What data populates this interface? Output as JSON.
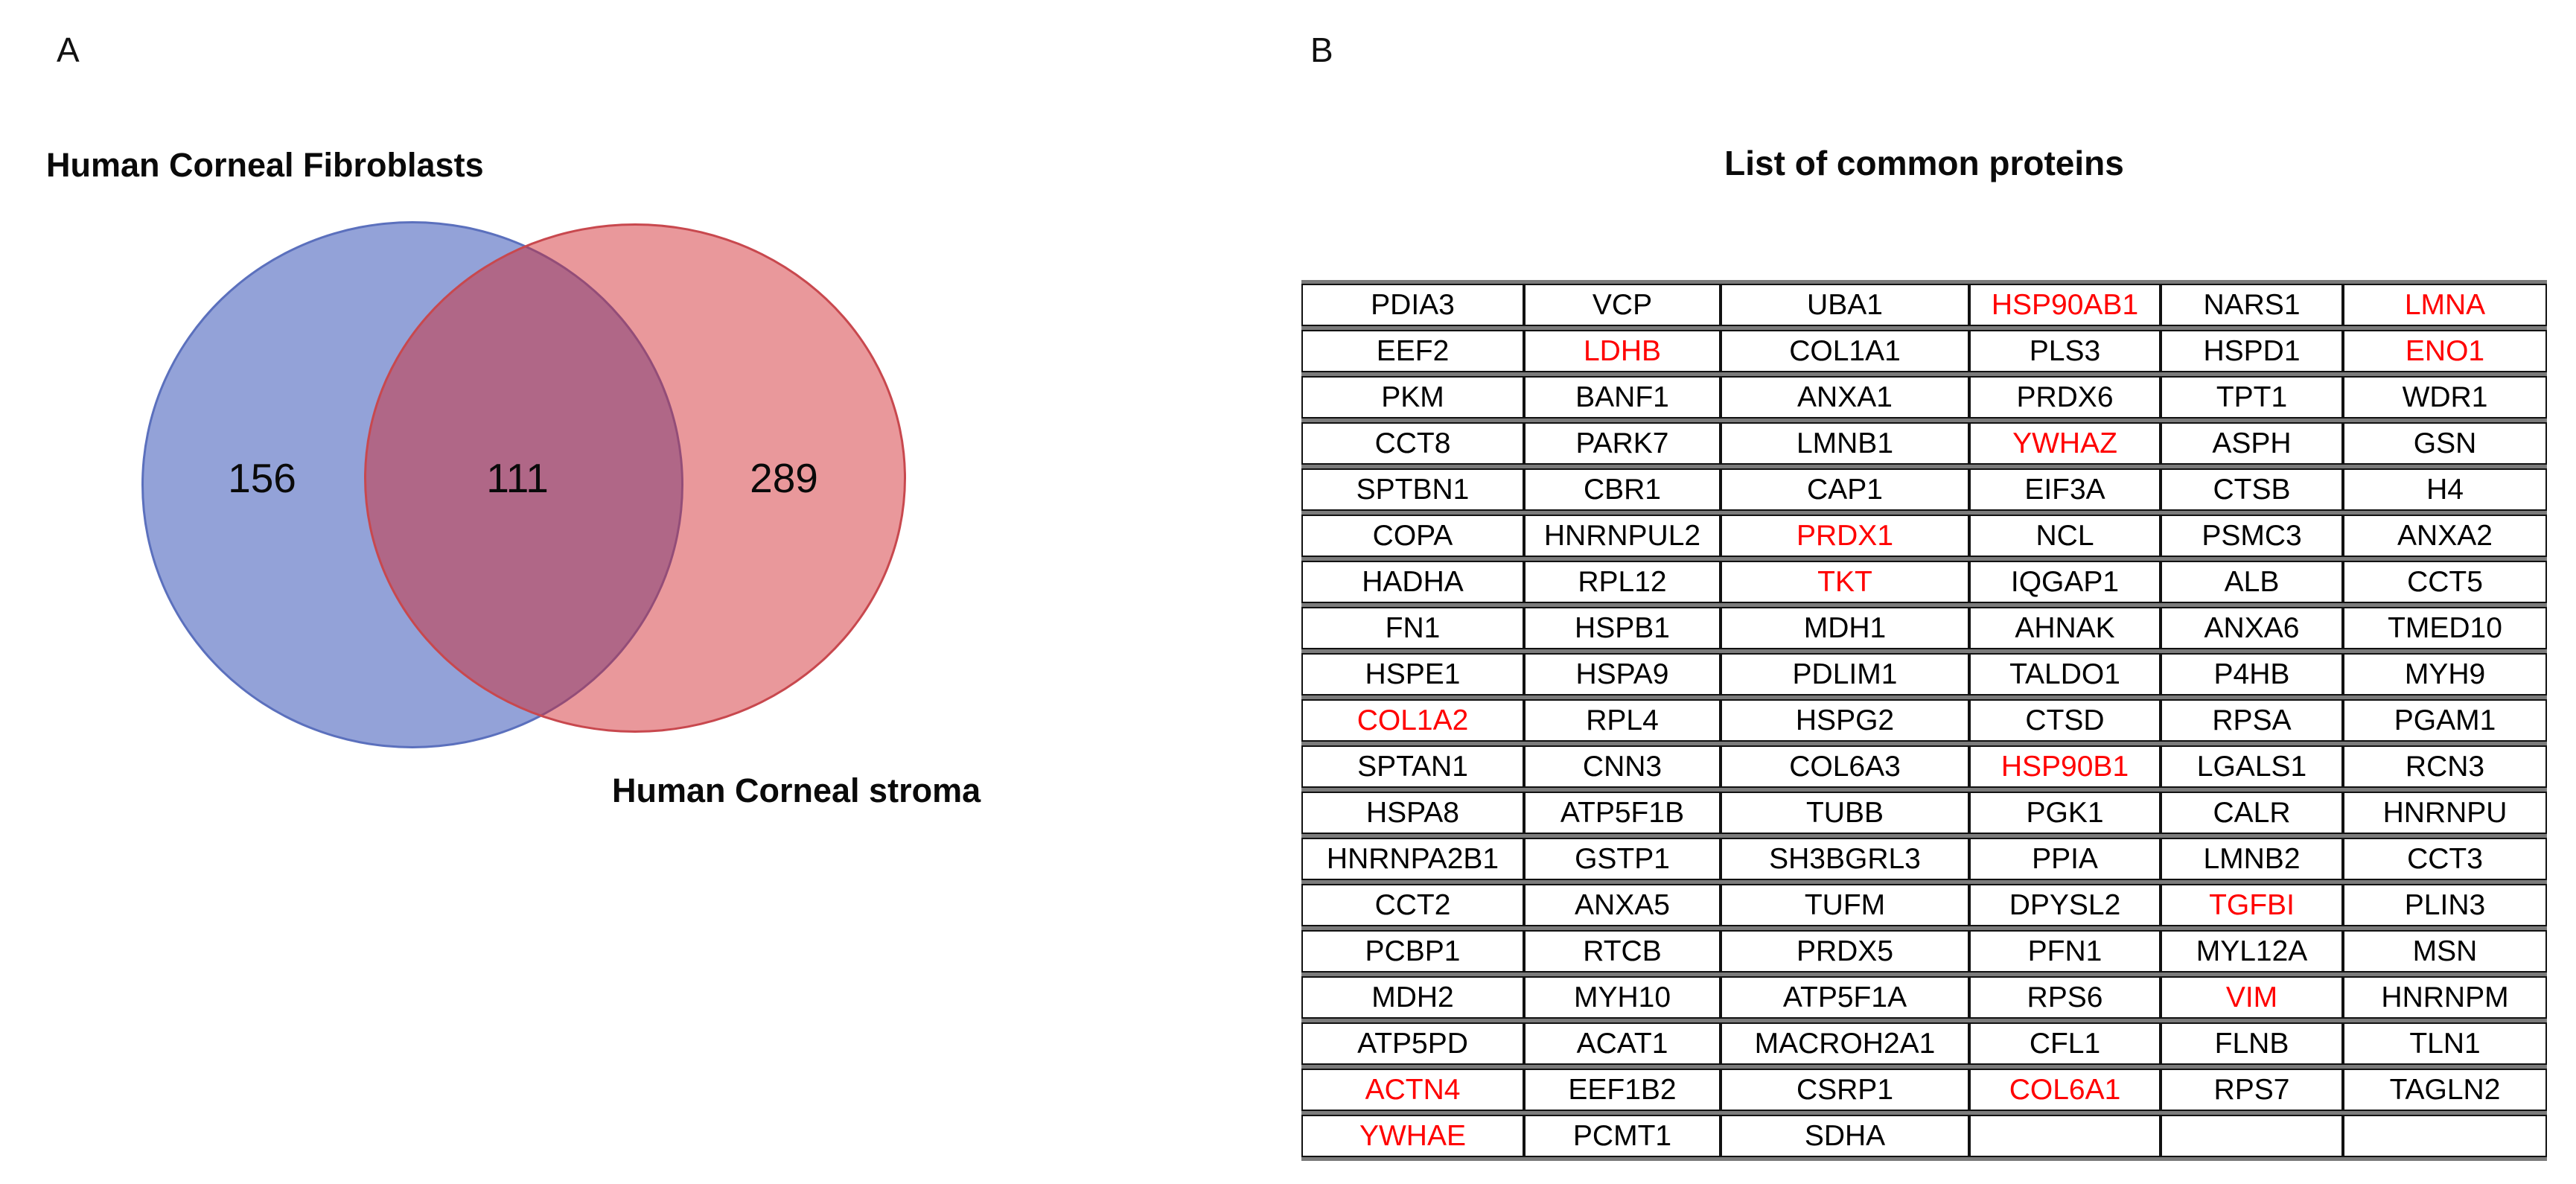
{
  "labels": {
    "panel_a": "A",
    "panel_b": "B"
  },
  "chart_data": [
    {
      "type": "venn",
      "sets": [
        {
          "label": "Human Corneal Fibroblasts",
          "unique": 156
        },
        {
          "label": "Human Corneal stroma",
          "unique": 289
        }
      ],
      "overlap": 111,
      "colors": {
        "left_fill": "rgba(75,100,190,0.6)",
        "left_border": "#5b70bd",
        "right_fill": "rgba(209,40,47,0.48)",
        "right_border": "#c8484e",
        "left_rendered": "#93A2D8",
        "right_rendered": "#E9989B",
        "overlap_rendered": "#B06A80"
      }
    },
    {
      "type": "table",
      "title": "List of common proteins",
      "highlight_color": "#ff0000",
      "red_proteins": [
        "HSP90AB1",
        "LMNA",
        "LDHB",
        "ENO1",
        "YWHAZ",
        "PRDX1",
        "TKT",
        "COL1A2",
        "HSP90B1",
        "TGFBI",
        "VIM",
        "ACTN4",
        "COL6A1",
        "YWHAE"
      ],
      "rows": [
        [
          "PDIA3",
          "VCP",
          "UBA1",
          "HSP90AB1",
          "NARS1",
          "LMNA"
        ],
        [
          "EEF2",
          "LDHB",
          "COL1A1",
          "PLS3",
          "HSPD1",
          "ENO1"
        ],
        [
          "PKM",
          "BANF1",
          "ANXA1",
          "PRDX6",
          "TPT1",
          "WDR1"
        ],
        [
          "CCT8",
          "PARK7",
          "LMNB1",
          "YWHAZ",
          "ASPH",
          "GSN"
        ],
        [
          "SPTBN1",
          "CBR1",
          "CAP1",
          "EIF3A",
          "CTSB",
          "H4"
        ],
        [
          "COPA",
          "HNRNPUL2",
          "PRDX1",
          "NCL",
          "PSMC3",
          "ANXA2"
        ],
        [
          "HADHA",
          "RPL12",
          "TKT",
          "IQGAP1",
          "ALB",
          "CCT5"
        ],
        [
          "FN1",
          "HSPB1",
          "MDH1",
          "AHNAK",
          "ANXA6",
          "TMED10"
        ],
        [
          "HSPE1",
          "HSPA9",
          "PDLIM1",
          "TALDO1",
          "P4HB",
          "MYH9"
        ],
        [
          "COL1A2",
          "RPL4",
          "HSPG2",
          "CTSD",
          "RPSA",
          "PGAM1"
        ],
        [
          "SPTAN1",
          "CNN3",
          "COL6A3",
          "HSP90B1",
          "LGALS1",
          "RCN3"
        ],
        [
          "HSPA8",
          "ATP5F1B",
          "TUBB",
          "PGK1",
          "CALR",
          "HNRNPU"
        ],
        [
          "HNRNPA2B1",
          "GSTP1",
          "SH3BGRL3",
          "PPIA",
          "LMNB2",
          "CCT3"
        ],
        [
          "CCT2",
          "ANXA5",
          "TUFM",
          "DPYSL2",
          "TGFBI",
          "PLIN3"
        ],
        [
          "PCBP1",
          "RTCB",
          "PRDX5",
          "PFN1",
          "MYL12A",
          "MSN"
        ],
        [
          "MDH2",
          "MYH10",
          "ATP5F1A",
          "RPS6",
          "VIM",
          "HNRNPM"
        ],
        [
          "ATP5PD",
          "ACAT1",
          "MACROH2A1",
          "CFL1",
          "FLNB",
          "TLN1"
        ],
        [
          "ACTN4",
          "EEF1B2",
          "CSRP1",
          "COL6A1",
          "RPS7",
          "TAGLN2"
        ],
        [
          "YWHAE",
          "PCMT1",
          "SDHA",
          "",
          "",
          ""
        ]
      ]
    }
  ]
}
